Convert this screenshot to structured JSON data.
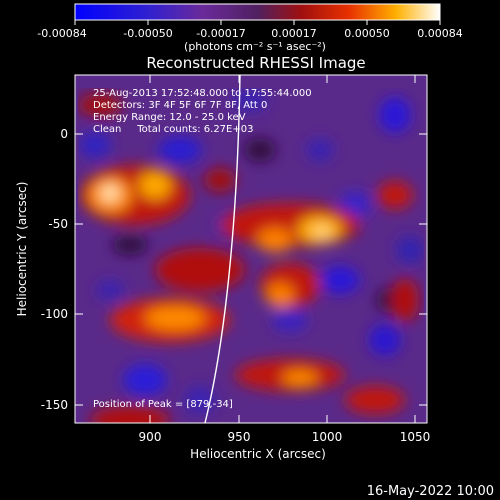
{
  "colorbar": {
    "ticks": [
      "-0.00084",
      "-0.00050",
      "-0.00017",
      "0.00017",
      "0.00050",
      "0.00084"
    ],
    "units_label": "(photons cm⁻² s⁻¹ asec⁻²)"
  },
  "title": "Reconstructed RHESSI Image",
  "info": {
    "line1": "25-Aug-2013 17:52:48.000 to 17:55:44.000",
    "line2": "Detectors: 3F 4F 5F 6F 7F 8F, Att 0",
    "line3": "Energy Range: 12.0 - 25.0 keV",
    "line4": "Clean     Total counts: 6.27E+03"
  },
  "peak_label": "Position of Peak = [879,-34]",
  "x_axis": {
    "label": "Heliocentric X (arcsec)",
    "ticks": [
      "900",
      "950",
      "1000",
      "1050"
    ]
  },
  "y_axis": {
    "label": "Heliocentric Y (arcsec)",
    "ticks": [
      "0",
      "-50",
      "-100",
      "-150"
    ]
  },
  "footer_date": "16-May-2022 10:00"
}
